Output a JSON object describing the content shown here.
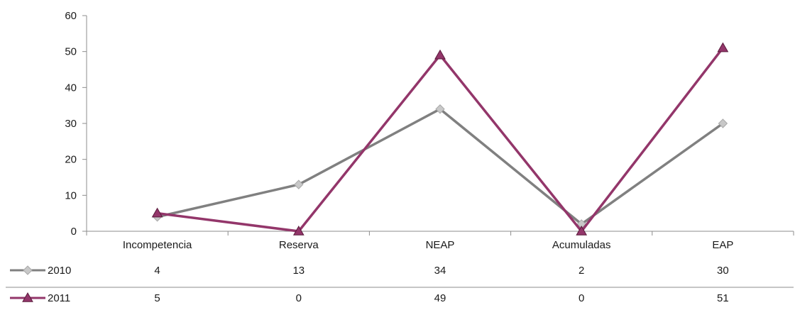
{
  "chart_data": {
    "type": "line",
    "categories": [
      "Incompetencia",
      "Reserva",
      "NEAP",
      "Acumuladas",
      "EAP"
    ],
    "series": [
      {
        "name": "2010",
        "values": [
          4,
          13,
          34,
          2,
          30
        ],
        "color": "#808080",
        "marker": "diamond",
        "marker_color": "#c8c8c8"
      },
      {
        "name": "2011",
        "values": [
          5,
          0,
          49,
          0,
          51
        ],
        "color": "#93366a",
        "marker": "triangle",
        "marker_color": "#93366a"
      }
    ],
    "ylim": [
      0,
      60
    ],
    "yticks": [
      "0",
      "10",
      "20",
      "30",
      "40",
      "50",
      "60"
    ],
    "grid": false,
    "legend": "data-table",
    "title": "",
    "xlabel": "",
    "ylabel": ""
  }
}
